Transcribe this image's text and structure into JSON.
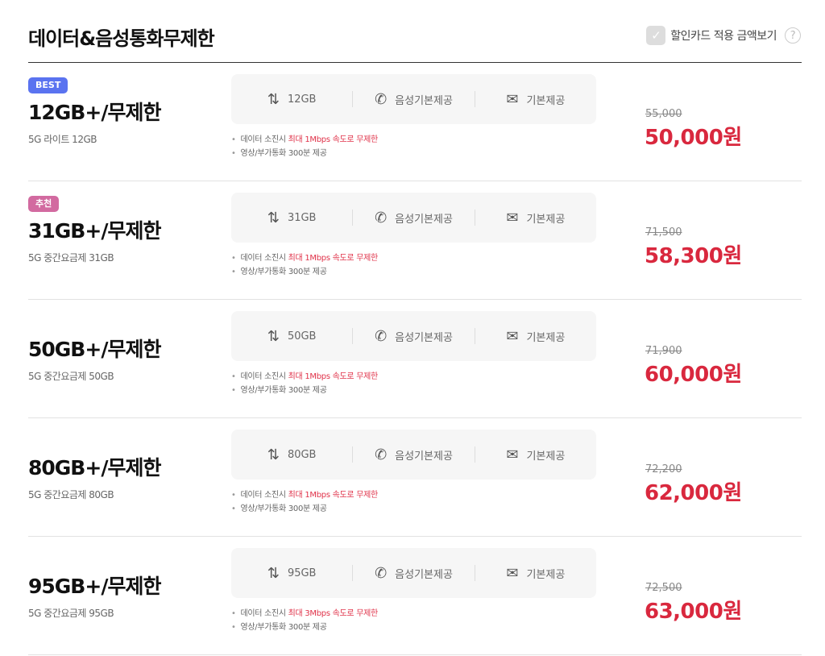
{
  "header": {
    "title": "데이터&음성통화무제한",
    "discount_label": "할인카드 적용 금액보기",
    "discount_checked": true,
    "help_icon": "?"
  },
  "colors": {
    "best_badge": "#5a73f0",
    "recommend_badge": "#d26aa0",
    "price": "#d9283e",
    "highlight": "#e0334a"
  },
  "plans": [
    {
      "badge": "BEST",
      "badge_type": "best",
      "name": "12GB+/무제한",
      "sub": "5G 라이트 12GB",
      "data": "12GB",
      "voice": "음성기본제공",
      "sms": "기본제공",
      "note1_pre": "데이터 소진시 ",
      "note1_hl": "최대 1Mbps 속도로 무제한",
      "note2": "영상/부가통화 300분 제공",
      "orig": "55,000",
      "price": "50,000원"
    },
    {
      "badge": "추천",
      "badge_type": "recommend",
      "name": "31GB+/무제한",
      "sub": "5G 중간요금제 31GB",
      "data": "31GB",
      "voice": "음성기본제공",
      "sms": "기본제공",
      "note1_pre": "데이터 소진시 ",
      "note1_hl": "최대 1Mbps 속도로 무제한",
      "note2": "영상/부가통화 300분 제공",
      "orig": "71,500",
      "price": "58,300원"
    },
    {
      "badge": null,
      "name": "50GB+/무제한",
      "sub": "5G 중간요금제 50GB",
      "data": "50GB",
      "voice": "음성기본제공",
      "sms": "기본제공",
      "note1_pre": "데이터 소진시 ",
      "note1_hl": "최대 1Mbps 속도로 무제한",
      "note2": "영상/부가통화 300분 제공",
      "orig": "71,900",
      "price": "60,000원"
    },
    {
      "badge": null,
      "name": "80GB+/무제한",
      "sub": "5G 중간요금제 80GB",
      "data": "80GB",
      "voice": "음성기본제공",
      "sms": "기본제공",
      "note1_pre": "데이터 소진시 ",
      "note1_hl": "최대 1Mbps 속도로 무제한",
      "note2": "영상/부가통화 300분 제공",
      "orig": "72,200",
      "price": "62,000원"
    },
    {
      "badge": null,
      "name": "95GB+/무제한",
      "sub": "5G 중간요금제 95GB",
      "data": "95GB",
      "voice": "음성기본제공",
      "sms": "기본제공",
      "note1_pre": "데이터 소진시 ",
      "note1_hl": "최대 3Mbps 속도로 무제한",
      "note2": "영상/부가통화 300분 제공",
      "orig": "72,500",
      "price": "63,000원"
    }
  ]
}
